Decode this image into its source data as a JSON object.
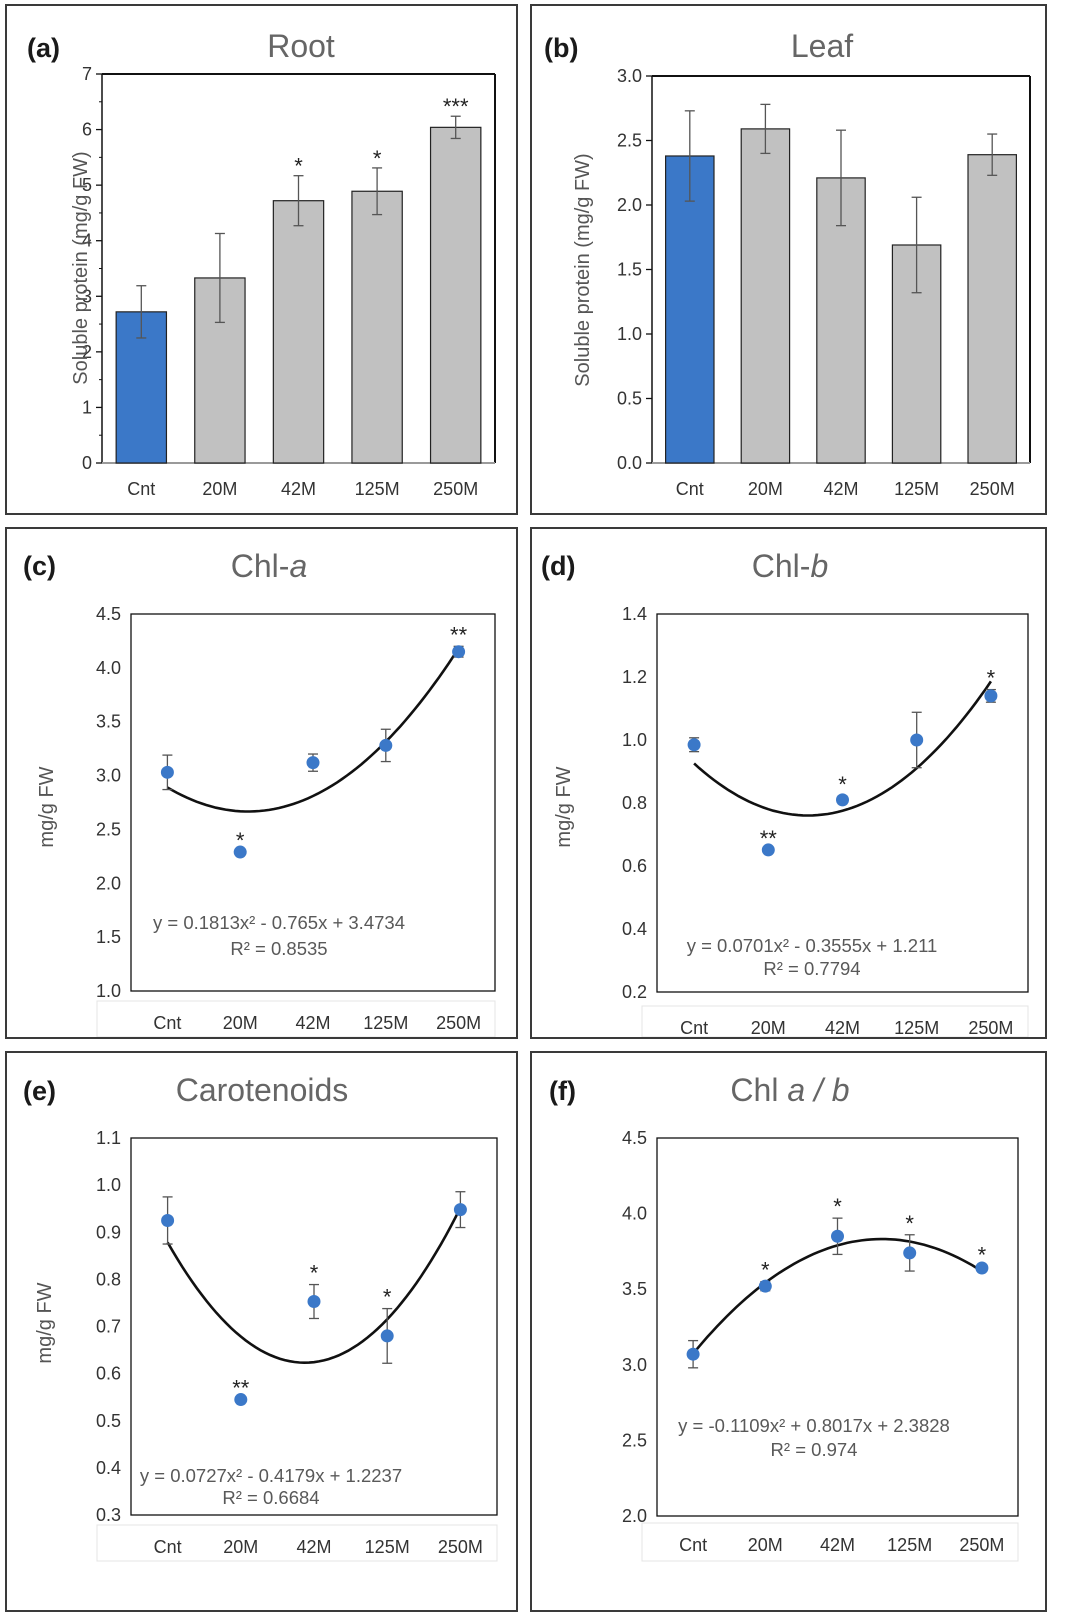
{
  "chart_data": [
    {
      "id": "a",
      "type": "bar",
      "panel_label": "(a)",
      "title": "Root",
      "ylabel": "Soluble protein (mg/g FW)",
      "ylim": [
        0,
        7
      ],
      "yticks": [
        "0",
        "1",
        "2",
        "3",
        "4",
        "5",
        "6",
        "7"
      ],
      "categories": [
        "Cnt",
        "20M",
        "42M",
        "125M",
        "250M"
      ],
      "values": [
        2.72,
        3.33,
        4.72,
        4.89,
        6.04
      ],
      "errors": [
        0.47,
        0.8,
        0.45,
        0.42,
        0.2
      ],
      "annotations": [
        "",
        "",
        "*",
        "*",
        "***"
      ],
      "colors": [
        "#3b78c8",
        "#c1c1c1",
        "#c1c1c1",
        "#c1c1c1",
        "#c1c1c1"
      ]
    },
    {
      "id": "b",
      "type": "bar",
      "panel_label": "(b)",
      "title": "Leaf",
      "ylabel": "Soluble protein (mg/g FW)",
      "ylim": [
        0,
        3
      ],
      "yticks": [
        "0.0",
        "0.5",
        "1.0",
        "1.5",
        "2.0",
        "2.5",
        "3.0"
      ],
      "categories": [
        "Cnt",
        "20M",
        "42M",
        "125M",
        "250M"
      ],
      "values": [
        2.38,
        2.59,
        2.21,
        1.69,
        2.39
      ],
      "errors": [
        0.35,
        0.19,
        0.37,
        0.37,
        0.16
      ],
      "annotations": [
        "",
        "",
        "",
        "",
        ""
      ],
      "colors": [
        "#3b78c8",
        "#c1c1c1",
        "#c1c1c1",
        "#c1c1c1",
        "#c1c1c1"
      ]
    },
    {
      "id": "c",
      "type": "scatter",
      "panel_label": "(c)",
      "title_plain": "Chl-",
      "title_italic": "a",
      "ylabel": "mg/g FW",
      "ylim": [
        1,
        4.5
      ],
      "yticks": [
        "1.0",
        "1.5",
        "2.0",
        "2.5",
        "3.0",
        "3.5",
        "4.0",
        "4.5"
      ],
      "categories": [
        "Cnt",
        "20M",
        "42M",
        "125M",
        "250M"
      ],
      "values": [
        3.03,
        2.29,
        3.12,
        3.28,
        4.15
      ],
      "errors": [
        0.16,
        0.0,
        0.08,
        0.15,
        0.05
      ],
      "annotations": [
        "",
        "*",
        "",
        "",
        "**"
      ],
      "trend": [
        0.1813,
        -0.765,
        3.4734
      ],
      "equation": "y = 0.1813x² - 0.765x + 3.4734",
      "r2": "R² = 0.8535"
    },
    {
      "id": "d",
      "type": "scatter",
      "panel_label": "(d)",
      "title_plain": "Chl-",
      "title_italic": "b",
      "ylabel": "mg/g FW",
      "ylim": [
        0.2,
        1.4
      ],
      "yticks": [
        "0.2",
        "0.4",
        "0.6",
        "0.8",
        "1.0",
        "1.2",
        "1.4"
      ],
      "categories": [
        "Cnt",
        "20M",
        "42M",
        "125M",
        "250M"
      ],
      "values": [
        0.985,
        0.651,
        0.81,
        1.0,
        1.14
      ],
      "errors": [
        0.022,
        0.0,
        0.012,
        0.088,
        0.02
      ],
      "annotations": [
        "",
        "**",
        "*",
        "",
        "*"
      ],
      "trend": [
        0.0701,
        -0.3555,
        1.211
      ],
      "equation": "y = 0.0701x² - 0.3555x + 1.211",
      "r2": "R² = 0.7794"
    },
    {
      "id": "e",
      "type": "scatter",
      "panel_label": "(e)",
      "title_plain": "Carotenoids",
      "title_italic": "",
      "ylabel": "mg/g FW",
      "ylim": [
        0.3,
        1.1
      ],
      "yticks": [
        "0.3",
        "0.4",
        "0.5",
        "0.6",
        "0.7",
        "0.8",
        "0.9",
        "1.0",
        "1.1"
      ],
      "categories": [
        "Cnt",
        "20M",
        "42M",
        "125M",
        "250M"
      ],
      "values": [
        0.925,
        0.545,
        0.753,
        0.68,
        0.948
      ],
      "errors": [
        0.05,
        0.0,
        0.036,
        0.058,
        0.038
      ],
      "annotations": [
        "",
        "**",
        "*",
        "*",
        ""
      ],
      "trend": [
        0.0727,
        -0.4179,
        1.2237
      ],
      "equation": "y = 0.0727x² - 0.4179x + 1.2237",
      "r2": "R² = 0.6684"
    },
    {
      "id": "f",
      "type": "scatter",
      "panel_label": "(f)",
      "title_plain": "Chl ",
      "title_italic": "a / b",
      "ylabel": "",
      "ylim": [
        2,
        4.5
      ],
      "yticks": [
        "2.0",
        "2.5",
        "3.0",
        "3.5",
        "4.0",
        "4.5"
      ],
      "categories": [
        "Cnt",
        "20M",
        "42M",
        "125M",
        "250M"
      ],
      "values": [
        3.07,
        3.52,
        3.85,
        3.74,
        3.64
      ],
      "errors": [
        0.09,
        0.03,
        0.12,
        0.12,
        0.01
      ],
      "annotations": [
        "",
        "*",
        "*",
        "*",
        "*"
      ],
      "trend": [
        -0.1109,
        0.8017,
        2.3828
      ],
      "equation": "y = -0.1109x² + 0.8017x + 2.3828",
      "r2": "R² = 0.974"
    }
  ]
}
